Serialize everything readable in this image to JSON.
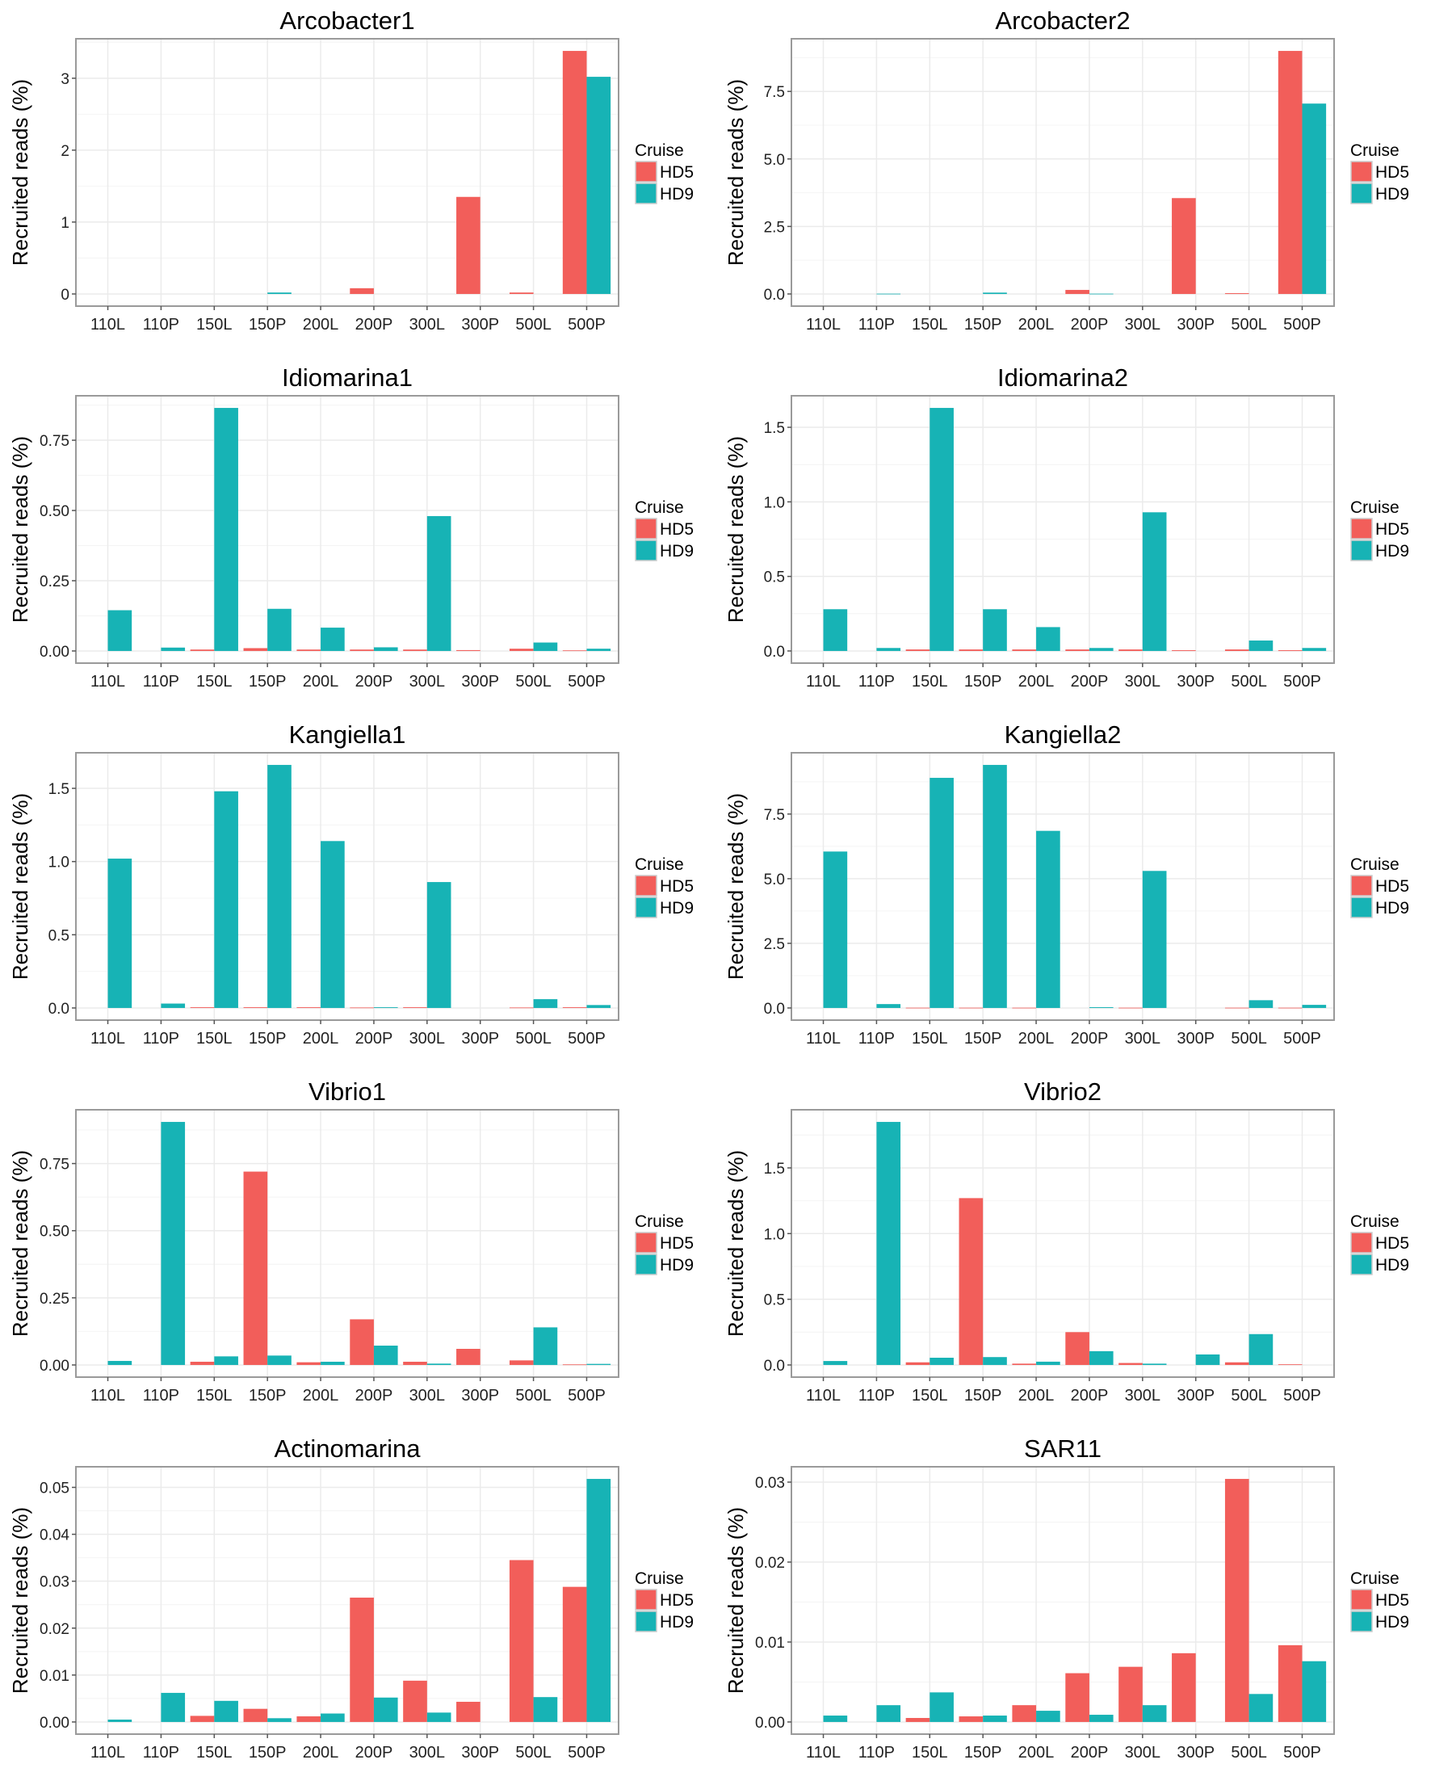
{
  "colors": {
    "HD5": "#F25E5A",
    "HD9": "#17B3B5",
    "panel_border": "#9a9a9a",
    "grid": "#ebebeb"
  },
  "chart_data": [
    {
      "type": "bar",
      "title": "Arcobacter1",
      "ylabel": "Recruited reads (%)",
      "xlabel": "",
      "categories": [
        "110L",
        "110P",
        "150L",
        "150P",
        "200L",
        "200P",
        "300L",
        "300P",
        "500L",
        "500P"
      ],
      "yticks": [
        0,
        1,
        2,
        3
      ],
      "ytick_labels": [
        "0",
        "1",
        "2",
        "3"
      ],
      "legend": {
        "title": "Cruise",
        "position": "right"
      },
      "series": [
        {
          "name": "HD5",
          "values": [
            0,
            0,
            0,
            0,
            0,
            0.08,
            0,
            1.35,
            0.02,
            3.38
          ]
        },
        {
          "name": "HD9",
          "values": [
            0,
            0,
            0,
            0.02,
            0,
            0,
            0,
            0,
            0,
            3.02
          ]
        }
      ]
    },
    {
      "type": "bar",
      "title": "Arcobacter2",
      "ylabel": "Recruited reads (%)",
      "xlabel": "",
      "categories": [
        "110L",
        "110P",
        "150L",
        "150P",
        "200L",
        "200P",
        "300L",
        "300P",
        "500L",
        "500P"
      ],
      "yticks": [
        0,
        2.5,
        5,
        7.5
      ],
      "ytick_labels": [
        "0.0",
        "2.5",
        "5.0",
        "7.5"
      ],
      "legend": {
        "title": "Cruise",
        "position": "right"
      },
      "series": [
        {
          "name": "HD5",
          "values": [
            0,
            0,
            0,
            0,
            0,
            0.15,
            0,
            3.55,
            0.03,
            9.0
          ]
        },
        {
          "name": "HD9",
          "values": [
            0,
            0.01,
            0,
            0.05,
            0,
            0.01,
            0,
            0,
            0,
            7.05
          ]
        }
      ]
    },
    {
      "type": "bar",
      "title": "Idiomarina1",
      "ylabel": "Recruited reads (%)",
      "xlabel": "",
      "categories": [
        "110L",
        "110P",
        "150L",
        "150P",
        "200L",
        "200P",
        "300L",
        "300P",
        "500L",
        "500P"
      ],
      "yticks": [
        0,
        0.25,
        0.5,
        0.75
      ],
      "ytick_labels": [
        "0.00",
        "0.25",
        "0.50",
        "0.75"
      ],
      "legend": {
        "title": "Cruise",
        "position": "right"
      },
      "series": [
        {
          "name": "HD5",
          "values": [
            0,
            0,
            0.005,
            0.01,
            0.005,
            0.005,
            0.005,
            0.003,
            0.008,
            0.002
          ]
        },
        {
          "name": "HD9",
          "values": [
            0.145,
            0.012,
            0.865,
            0.15,
            0.083,
            0.013,
            0.48,
            0,
            0.03,
            0.008
          ]
        }
      ]
    },
    {
      "type": "bar",
      "title": "Idiomarina2",
      "ylabel": "Recruited reads (%)",
      "xlabel": "",
      "categories": [
        "110L",
        "110P",
        "150L",
        "150P",
        "200L",
        "200P",
        "300L",
        "300P",
        "500L",
        "500P"
      ],
      "yticks": [
        0,
        0.5,
        1,
        1.5
      ],
      "ytick_labels": [
        "0.0",
        "0.5",
        "1.0",
        "1.5"
      ],
      "legend": {
        "title": "Cruise",
        "position": "right"
      },
      "series": [
        {
          "name": "HD5",
          "values": [
            0,
            0,
            0.01,
            0.01,
            0.01,
            0.01,
            0.01,
            0.005,
            0.01,
            0.005
          ]
        },
        {
          "name": "HD9",
          "values": [
            0.28,
            0.02,
            1.63,
            0.28,
            0.16,
            0.02,
            0.93,
            0,
            0.07,
            0.02
          ]
        }
      ]
    },
    {
      "type": "bar",
      "title": "Kangiella1",
      "ylabel": "Recruited reads (%)",
      "xlabel": "",
      "categories": [
        "110L",
        "110P",
        "150L",
        "150P",
        "200L",
        "200P",
        "300L",
        "300P",
        "500L",
        "500P"
      ],
      "yticks": [
        0,
        0.5,
        1,
        1.5
      ],
      "ytick_labels": [
        "0.0",
        "0.5",
        "1.0",
        "1.5"
      ],
      "legend": {
        "title": "Cruise",
        "position": "right"
      },
      "series": [
        {
          "name": "HD5",
          "values": [
            0,
            0,
            0.005,
            0.005,
            0.005,
            0.003,
            0.005,
            0,
            0.003,
            0.005
          ]
        },
        {
          "name": "HD9",
          "values": [
            1.02,
            0.03,
            1.48,
            1.66,
            1.14,
            0.005,
            0.86,
            0,
            0.06,
            0.02
          ]
        }
      ]
    },
    {
      "type": "bar",
      "title": "Kangiella2",
      "ylabel": "Recruited reads (%)",
      "xlabel": "",
      "categories": [
        "110L",
        "110P",
        "150L",
        "150P",
        "200L",
        "200P",
        "300L",
        "300P",
        "500L",
        "500P"
      ],
      "yticks": [
        0,
        2.5,
        5,
        7.5
      ],
      "ytick_labels": [
        "0.0",
        "2.5",
        "5.0",
        "7.5"
      ],
      "legend": {
        "title": "Cruise",
        "position": "right"
      },
      "series": [
        {
          "name": "HD5",
          "values": [
            0,
            0,
            0.01,
            0.01,
            0.01,
            0,
            0.01,
            0,
            0.01,
            0.01
          ]
        },
        {
          "name": "HD9",
          "values": [
            6.05,
            0.15,
            8.9,
            9.4,
            6.85,
            0.03,
            5.3,
            0,
            0.3,
            0.12
          ]
        }
      ]
    },
    {
      "type": "bar",
      "title": "Vibrio1",
      "ylabel": "Recruited reads (%)",
      "xlabel": "",
      "categories": [
        "110L",
        "110P",
        "150L",
        "150P",
        "200L",
        "200P",
        "300L",
        "300P",
        "500L",
        "500P"
      ],
      "yticks": [
        0,
        0.25,
        0.5,
        0.75
      ],
      "ytick_labels": [
        "0.00",
        "0.25",
        "0.50",
        "0.75"
      ],
      "legend": {
        "title": "Cruise",
        "position": "right"
      },
      "series": [
        {
          "name": "HD5",
          "values": [
            0,
            0,
            0.012,
            0.72,
            0.01,
            0.17,
            0.012,
            0.06,
            0.017,
            0.002
          ]
        },
        {
          "name": "HD9",
          "values": [
            0.015,
            0.905,
            0.032,
            0.035,
            0.012,
            0.072,
            0.005,
            0,
            0.14,
            0.004
          ]
        }
      ]
    },
    {
      "type": "bar",
      "title": "Vibrio2",
      "ylabel": "Recruited reads (%)",
      "xlabel": "",
      "categories": [
        "110L",
        "110P",
        "150L",
        "150P",
        "200L",
        "200P",
        "300L",
        "300P",
        "500L",
        "500P"
      ],
      "yticks": [
        0,
        0.5,
        1,
        1.5
      ],
      "ytick_labels": [
        "0.0",
        "0.5",
        "1.0",
        "1.5"
      ],
      "legend": {
        "title": "Cruise",
        "position": "right"
      },
      "series": [
        {
          "name": "HD5",
          "values": [
            0,
            0,
            0.02,
            1.27,
            0.01,
            0.25,
            0.015,
            0,
            0.02,
            0.005
          ]
        },
        {
          "name": "HD9",
          "values": [
            0.03,
            1.85,
            0.055,
            0.06,
            0.025,
            0.105,
            0.01,
            0.08,
            0.235,
            0
          ]
        }
      ]
    },
    {
      "type": "bar",
      "title": "Actinomarina",
      "ylabel": "Recruited reads (%)",
      "xlabel": "",
      "categories": [
        "110L",
        "110P",
        "150L",
        "150P",
        "200L",
        "200P",
        "300L",
        "300P",
        "500L",
        "500P"
      ],
      "yticks": [
        0,
        0.01,
        0.02,
        0.03,
        0.04,
        0.05
      ],
      "ytick_labels": [
        "0.00",
        "0.01",
        "0.02",
        "0.03",
        "0.04",
        "0.05"
      ],
      "legend": {
        "title": "Cruise",
        "position": "right"
      },
      "series": [
        {
          "name": "HD5",
          "values": [
            0,
            0,
            0.0013,
            0.0028,
            0.0012,
            0.0265,
            0.0088,
            0.0043,
            0.0345,
            0.0288
          ]
        },
        {
          "name": "HD9",
          "values": [
            0.0005,
            0.0062,
            0.0045,
            0.0008,
            0.0018,
            0.0052,
            0.002,
            0,
            0.0053,
            0.0518
          ]
        }
      ]
    },
    {
      "type": "bar",
      "title": "SAR11",
      "ylabel": "Recruited reads (%)",
      "xlabel": "",
      "categories": [
        "110L",
        "110P",
        "150L",
        "150P",
        "200L",
        "200P",
        "300L",
        "300P",
        "500L",
        "500P"
      ],
      "yticks": [
        0,
        0.01,
        0.02,
        0.03
      ],
      "ytick_labels": [
        "0.00",
        "0.01",
        "0.02",
        "0.03"
      ],
      "legend": {
        "title": "Cruise",
        "position": "right"
      },
      "series": [
        {
          "name": "HD5",
          "values": [
            0,
            0,
            0.0005,
            0.0007,
            0.0021,
            0.0061,
            0.0069,
            0.0086,
            0.0304,
            0.0096
          ]
        },
        {
          "name": "HD9",
          "values": [
            0.0008,
            0.0021,
            0.0037,
            0.0008,
            0.0014,
            0.0009,
            0.0021,
            0,
            0.0035,
            0.0076
          ]
        }
      ]
    }
  ]
}
